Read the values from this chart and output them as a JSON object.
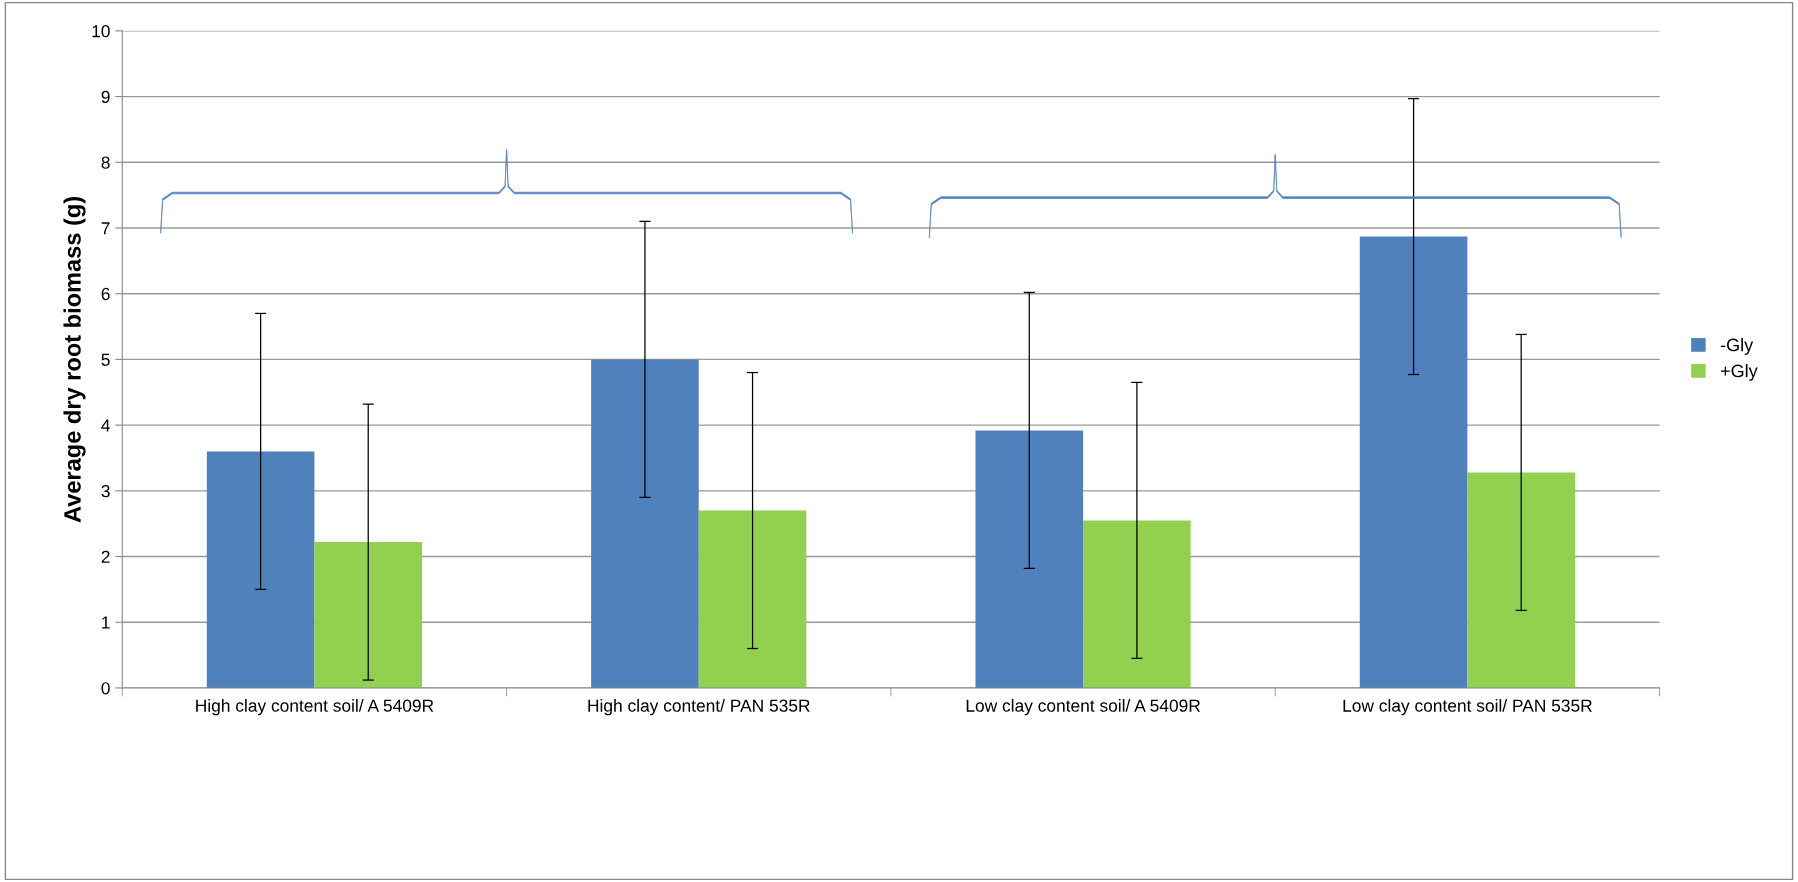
{
  "chart_data": {
    "type": "bar",
    "ylabel": "Average dry root biomass (g)",
    "categories": [
      "High clay content soil/ A 5409R",
      "High clay content/ PAN 535R",
      "Low clay content soil/ A 5409R",
      "Low clay content soil/ PAN 535R"
    ],
    "series": [
      {
        "name": "-Gly",
        "color": "#4f81bd",
        "values": [
          3.6,
          5.0,
          3.92,
          6.87
        ],
        "errors": [
          2.1,
          2.1,
          2.1,
          2.1
        ]
      },
      {
        "name": "+Gly",
        "color": "#92d050",
        "values": [
          2.22,
          2.7,
          2.55,
          3.28
        ],
        "errors": [
          2.1,
          2.1,
          2.1,
          2.1
        ]
      }
    ],
    "ylim": [
      0,
      10
    ],
    "yticks": [
      0,
      1,
      2,
      3,
      4,
      5,
      6,
      7,
      8,
      9,
      10
    ],
    "grid": "y",
    "legend": "right"
  }
}
